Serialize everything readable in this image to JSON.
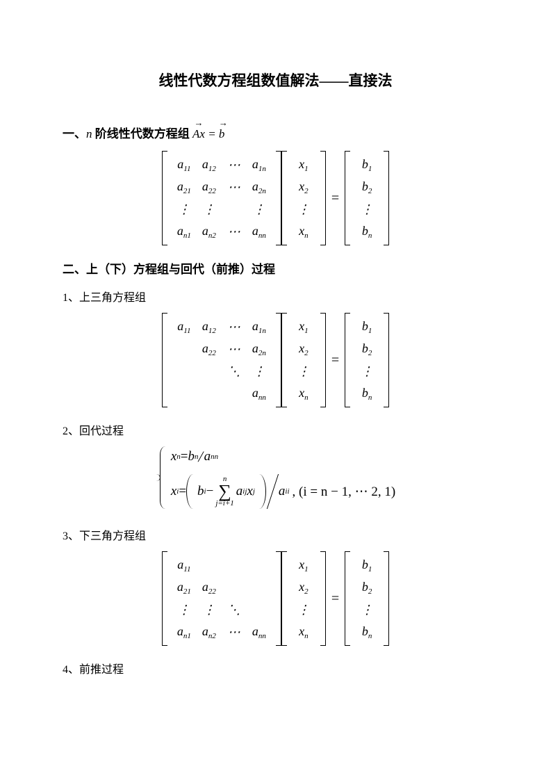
{
  "title": "线性代数方程组数值解法——直接法",
  "section1": {
    "prefix": "一、",
    "label_before_n": "",
    "n": "n",
    "label_after_n": " 阶线性代数方程组 ",
    "eq_lhs_A": "A",
    "eq_lhs_x": "x",
    "eq_sign": " = ",
    "eq_rhs_b": "b"
  },
  "matrix_full": {
    "rows": [
      [
        "a|11",
        "a|12",
        "⋯",
        "a|1n"
      ],
      [
        "a|21",
        "a|22",
        "⋯",
        "a|2n"
      ],
      [
        "⋮",
        "⋮",
        "",
        "⋮"
      ],
      [
        "a|n1",
        "a|n2",
        "⋯",
        "a|nn"
      ]
    ],
    "x": [
      "x|1",
      "x|2",
      "⋮",
      "x|n"
    ],
    "b": [
      "b|1",
      "b|2",
      "⋮",
      "b|n"
    ],
    "eq": "="
  },
  "section2": {
    "text": "二、上（下）方程组与回代（前推）过程"
  },
  "sub1": {
    "text": "1、上三角方程组"
  },
  "matrix_upper": {
    "rows": [
      [
        "a|11",
        "a|12",
        "⋯",
        "a|1n"
      ],
      [
        "",
        "a|22",
        "⋯",
        "a|2n"
      ],
      [
        "",
        "",
        "⋱",
        "⋮"
      ],
      [
        "",
        "",
        "",
        "a|nn"
      ]
    ],
    "x": [
      "x|1",
      "x|2",
      "⋮",
      "x|n"
    ],
    "b": [
      "b|1",
      "b|2",
      "⋮",
      "b|n"
    ],
    "eq": "="
  },
  "sub2": {
    "text": "2、回代过程"
  },
  "back_sub": {
    "line1": {
      "xn": "x",
      "xn_sub": "n",
      "eq": " = ",
      "bn": "b",
      "bn_sub": "n",
      "slash": "/",
      "ann": "a",
      "ann_sub": "nn"
    },
    "line2": {
      "xi": "x",
      "xi_sub": "i",
      "eq": " = ",
      "bi": "b",
      "bi_sub": "i",
      "minus": " − ",
      "sum_top": "n",
      "sum_bot": "j=i+1",
      "aij": "a",
      "aij_sub": "ij",
      "xj": "x",
      "xj_sub": "j",
      "aii": "a",
      "aii_sub": "ii",
      "tail": ", (i = n − 1, ⋯ 2, 1)"
    }
  },
  "sub3": {
    "text": "3、下三角方程组"
  },
  "matrix_lower": {
    "rows": [
      [
        "a|11",
        "",
        "",
        ""
      ],
      [
        "a|21",
        "a|22",
        "",
        ""
      ],
      [
        "⋮",
        "⋮",
        "⋱",
        ""
      ],
      [
        "a|n1",
        "a|n2",
        "⋯",
        "a|nn"
      ]
    ],
    "x": [
      "x|1",
      "x|2",
      "⋮",
      "x|n"
    ],
    "b": [
      "b|1",
      "b|2",
      "⋮",
      "b|n"
    ],
    "eq": "="
  },
  "sub4": {
    "text": "4、前推过程"
  }
}
